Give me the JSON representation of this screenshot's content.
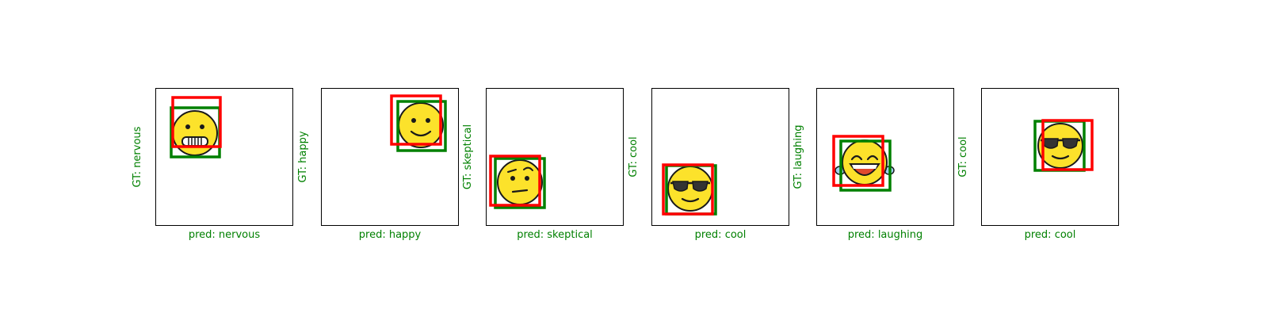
{
  "colors": {
    "ground_truth_box": "#008000",
    "prediction_box": "#ff0000",
    "label_text": "#008000",
    "emoji_face": "#fce22b",
    "emoji_outline": "#1a1a1a"
  },
  "panels": [
    {
      "gt_label": "GT: nervous",
      "pred_label": "pred: nervous",
      "emoji_icon": "grimacing-face-icon"
    },
    {
      "gt_label": "GT: happy",
      "pred_label": "pred: happy",
      "emoji_icon": "slightly-smiling-face-icon"
    },
    {
      "gt_label": "GT: skeptical",
      "pred_label": "pred: skeptical",
      "emoji_icon": "skeptical-face-icon"
    },
    {
      "gt_label": "GT: cool",
      "pred_label": "pred: cool",
      "emoji_icon": "sunglasses-face-icon"
    },
    {
      "gt_label": "GT: laughing",
      "pred_label": "pred: laughing",
      "emoji_icon": "tears-of-joy-face-icon"
    },
    {
      "gt_label": "GT: cool",
      "pred_label": "pred: cool",
      "emoji_icon": "sunglasses-face-icon"
    }
  ]
}
